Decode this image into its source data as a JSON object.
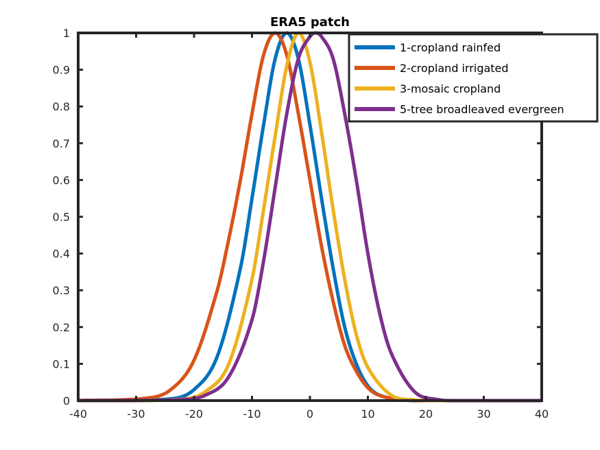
{
  "chart_data": {
    "type": "line",
    "title": "ERA5 patch",
    "xlabel": "",
    "ylabel": "",
    "xlim": [
      -40,
      40
    ],
    "ylim": [
      0,
      1
    ],
    "x_ticks": [
      -40,
      -30,
      -20,
      -10,
      0,
      10,
      20,
      30,
      40
    ],
    "y_ticks": [
      0,
      0.1,
      0.2,
      0.3,
      0.4,
      0.5,
      0.6,
      0.7,
      0.8,
      0.9,
      1
    ],
    "x_tick_labels": [
      "-40",
      "-30",
      "-20",
      "-10",
      "0",
      "10",
      "20",
      "30",
      "40"
    ],
    "y_tick_labels": [
      "0",
      "0.1",
      "0.2",
      "0.3",
      "0.4",
      "0.5",
      "0.6",
      "0.7",
      "0.8",
      "0.9",
      "1"
    ],
    "grid": false,
    "legend_position": "top-right",
    "series": [
      {
        "name": "1-cropland rainfed",
        "color": "#0072BD",
        "x": [
          -40,
          -24,
          -20,
          -16,
          -12,
          -10,
          -8,
          -6,
          -4,
          -2,
          0,
          2,
          4,
          6,
          8,
          10,
          12,
          16,
          20,
          40
        ],
        "y": [
          0,
          0.005,
          0.03,
          0.12,
          0.36,
          0.55,
          0.75,
          0.93,
          1.0,
          0.93,
          0.75,
          0.55,
          0.36,
          0.2,
          0.1,
          0.04,
          0.015,
          0.002,
          0,
          0
        ]
      },
      {
        "name": "2-cropland irrigated",
        "color": "#D95319",
        "x": [
          -40,
          -28,
          -24,
          -20,
          -16,
          -14,
          -12,
          -10,
          -8,
          -6,
          -4,
          -2,
          0,
          2,
          4,
          6,
          8,
          10,
          12,
          16,
          20,
          40
        ],
        "y": [
          0,
          0.007,
          0.03,
          0.11,
          0.3,
          0.44,
          0.6,
          0.78,
          0.94,
          1.0,
          0.94,
          0.78,
          0.6,
          0.42,
          0.27,
          0.15,
          0.08,
          0.035,
          0.014,
          0.002,
          0,
          0
        ]
      },
      {
        "name": "3-mosaic cropland",
        "color": "#EDB120",
        "x": [
          -40,
          -22,
          -18,
          -14,
          -10,
          -8,
          -6,
          -4,
          -2,
          0,
          2,
          4,
          6,
          8,
          10,
          14,
          18,
          22,
          40
        ],
        "y": [
          0,
          0.004,
          0.025,
          0.1,
          0.33,
          0.52,
          0.72,
          0.91,
          1.0,
          0.92,
          0.73,
          0.52,
          0.33,
          0.18,
          0.09,
          0.015,
          0.002,
          0,
          0
        ]
      },
      {
        "name": "5-tree broadleaved evergreen",
        "color": "#7E2F8E",
        "x": [
          -40,
          -22,
          -18,
          -14,
          -10,
          -8,
          -6,
          -4,
          -2,
          0,
          1,
          2,
          4,
          6,
          8,
          10,
          12,
          14,
          18,
          22,
          26,
          40
        ],
        "y": [
          0,
          0.003,
          0.015,
          0.065,
          0.22,
          0.38,
          0.58,
          0.78,
          0.93,
          0.99,
          1.0,
          0.99,
          0.93,
          0.78,
          0.6,
          0.4,
          0.24,
          0.13,
          0.025,
          0.003,
          0,
          0
        ]
      }
    ]
  }
}
